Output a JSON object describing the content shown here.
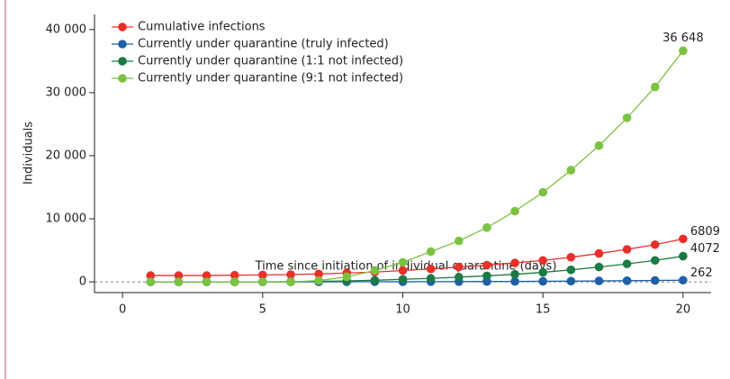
{
  "chart_data": {
    "type": "line",
    "x_label": "Time since initiation of individual quarantine (days)",
    "y_label": "Individuals",
    "x": [
      1,
      2,
      3,
      4,
      5,
      6,
      7,
      8,
      9,
      10,
      11,
      12,
      13,
      14,
      15,
      16,
      17,
      18,
      19,
      20
    ],
    "xlim": [
      -1,
      21
    ],
    "xticks": [
      0,
      5,
      10,
      15,
      20
    ],
    "ylim": [
      -1700,
      42400
    ],
    "yticks": [
      0,
      {
        "value": 10000,
        "label": "10 000"
      },
      {
        "value": 20000,
        "label": "20 000"
      },
      {
        "value": 30000,
        "label": "30 000"
      },
      {
        "value": 40000,
        "label": "40 000"
      }
    ],
    "legend": "upper left",
    "series": [
      {
        "name": "Cumulative infections",
        "color": "#e8302a",
        "values": [
          1000,
          1000,
          1000,
          1050,
          1100,
          1150,
          1250,
          1400,
          1550,
          1800,
          2050,
          2350,
          2650,
          3000,
          3400,
          3900,
          4500,
          5150,
          5900,
          6809
        ],
        "value_labels": [
          null,
          null,
          null,
          null,
          null,
          null,
          null,
          null,
          null,
          null,
          null,
          null,
          null,
          null,
          null,
          null,
          null,
          null,
          null,
          "6809"
        ]
      },
      {
        "name": "Currently under quarantine (truly infected)",
        "color": "#1f5fa6",
        "values": [
          0,
          0,
          0,
          0,
          0,
          2,
          5,
          10,
          15,
          20,
          30,
          40,
          55,
          70,
          90,
          115,
          145,
          180,
          220,
          262
        ],
        "value_labels": [
          null,
          null,
          null,
          null,
          null,
          null,
          null,
          null,
          null,
          null,
          null,
          null,
          null,
          null,
          null,
          null,
          null,
          null,
          null,
          "262"
        ]
      },
      {
        "name": "Currently under quarantine (1:1 not infected)",
        "color": "#1a7a45",
        "values": [
          0,
          0,
          0,
          0,
          0,
          20,
          80,
          150,
          250,
          400,
          550,
          750,
          950,
          1200,
          1500,
          1900,
          2350,
          2850,
          3400,
          4072
        ],
        "value_labels": [
          null,
          null,
          null,
          null,
          null,
          null,
          null,
          null,
          null,
          null,
          null,
          null,
          null,
          null,
          null,
          null,
          null,
          null,
          null,
          "4072"
        ]
      },
      {
        "name": "Currently under quarantine (9:1 not infected)",
        "color": "#7cc242",
        "values": [
          0,
          0,
          0,
          0,
          0,
          0,
          200,
          800,
          1800,
          3100,
          4800,
          6500,
          8600,
          11200,
          14200,
          17700,
          21600,
          26000,
          30900,
          36648
        ],
        "value_labels": [
          null,
          null,
          null,
          null,
          null,
          null,
          null,
          null,
          null,
          null,
          null,
          null,
          null,
          null,
          null,
          null,
          null,
          null,
          null,
          "36 648"
        ]
      }
    ]
  }
}
